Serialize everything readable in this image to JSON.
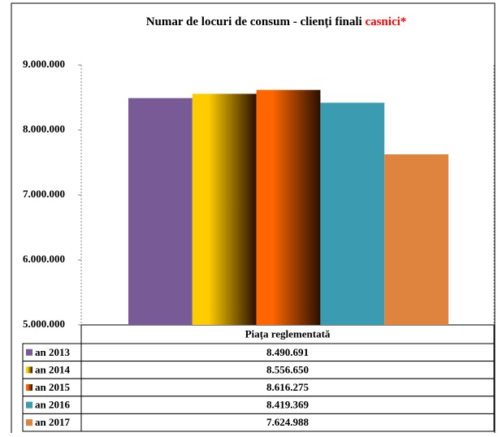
{
  "chart_data": {
    "type": "bar",
    "title": "Numar de locuri de consum - clienți finali",
    "title_highlight": "casnici*",
    "categories": [
      "Piața reglementată"
    ],
    "series": [
      {
        "name": "an 2013",
        "color": "#775a96",
        "values": [
          8490691
        ],
        "value_labels": [
          "8.490.691"
        ]
      },
      {
        "name": "an 2014",
        "color": "#ffcc00",
        "fill": "gradient",
        "values": [
          8556650
        ],
        "value_labels": [
          "8.556.650"
        ]
      },
      {
        "name": "an 2015",
        "color": "#ff6600",
        "fill": "gradient",
        "values": [
          8616275
        ],
        "value_labels": [
          "8.616.275"
        ]
      },
      {
        "name": "an 2016",
        "color": "#3b9bb0",
        "values": [
          8419369
        ],
        "value_labels": [
          "8.419.369"
        ]
      },
      {
        "name": "an 2017",
        "color": "#df843f",
        "values": [
          7624988
        ],
        "value_labels": [
          "7.624.988"
        ]
      }
    ],
    "ylim": [
      5000000,
      9000000
    ],
    "yticks": [
      {
        "value": 5000000,
        "label": "5.000.000"
      },
      {
        "value": 6000000,
        "label": "6.000.000"
      },
      {
        "value": 7000000,
        "label": "7.000.000"
      },
      {
        "value": 8000000,
        "label": "8.000.000"
      },
      {
        "value": 9000000,
        "label": "9.000.000"
      }
    ]
  }
}
